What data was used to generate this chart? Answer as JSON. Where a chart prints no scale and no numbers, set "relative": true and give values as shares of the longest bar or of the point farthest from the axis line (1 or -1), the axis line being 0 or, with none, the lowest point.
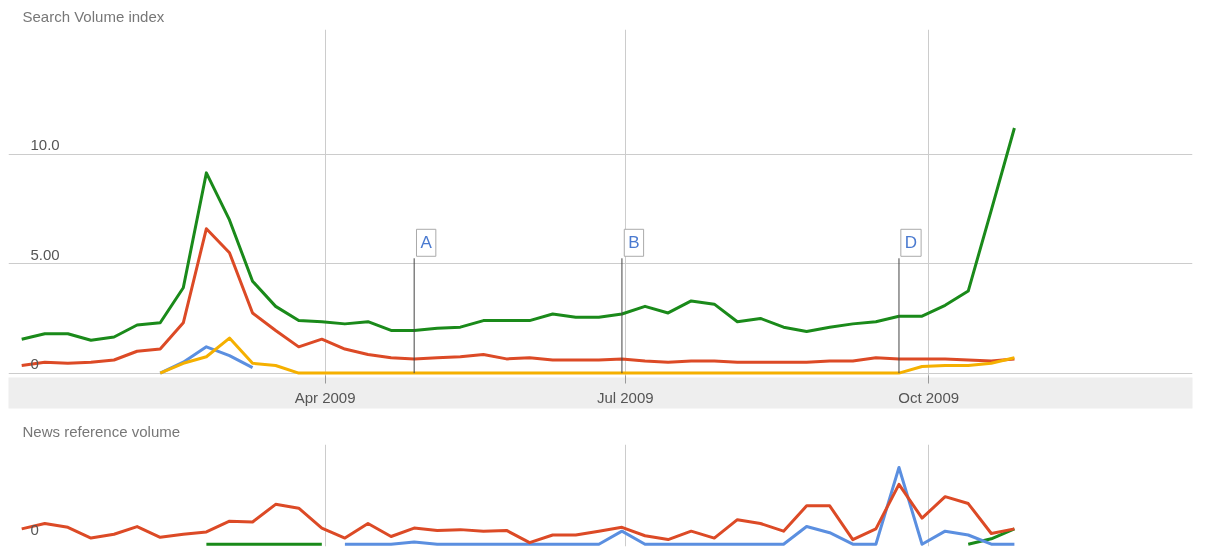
{
  "chart_data": [
    {
      "type": "line",
      "ylabel": "Search Volume index",
      "x": [
        "2008-12-30",
        "2009-01-06",
        "2009-01-13",
        "2009-01-20",
        "2009-01-27",
        "2009-02-03",
        "2009-02-10",
        "2009-02-17",
        "2009-02-24",
        "2009-03-03",
        "2009-03-10",
        "2009-03-17",
        "2009-03-24",
        "2009-03-31",
        "2009-04-07",
        "2009-04-14",
        "2009-04-21",
        "2009-04-28",
        "2009-05-05",
        "2009-05-12",
        "2009-05-19",
        "2009-05-26",
        "2009-06-02",
        "2009-06-09",
        "2009-06-16",
        "2009-06-23",
        "2009-06-30",
        "2009-07-07",
        "2009-07-14",
        "2009-07-21",
        "2009-07-28",
        "2009-08-04",
        "2009-08-11",
        "2009-08-18",
        "2009-08-25",
        "2009-09-01",
        "2009-09-08",
        "2009-09-15",
        "2009-09-22",
        "2009-09-29",
        "2009-10-06",
        "2009-10-13",
        "2009-10-20",
        "2009-10-27"
      ],
      "series": [
        {
          "color": "#1a8a1a",
          "values": [
            1.55,
            1.8,
            1.8,
            1.5,
            1.65,
            2.2,
            2.3,
            3.9,
            9.15,
            7.0,
            4.2,
            3.05,
            2.4,
            2.35,
            2.25,
            2.35,
            1.95,
            1.95,
            2.05,
            2.1,
            2.4,
            2.4,
            2.4,
            2.7,
            2.55,
            2.55,
            2.7,
            3.05,
            2.75,
            3.3,
            3.15,
            2.35,
            2.5,
            2.1,
            1.9,
            2.1,
            2.25,
            2.35,
            2.6,
            2.6,
            3.1,
            3.75,
            7.45,
            11.2
          ]
        },
        {
          "color": "#dc4a26",
          "values": [
            0.35,
            0.5,
            0.45,
            0.5,
            0.6,
            1.0,
            1.1,
            2.3,
            6.6,
            5.5,
            2.75,
            1.95,
            1.2,
            1.55,
            1.1,
            0.85,
            0.7,
            0.65,
            0.7,
            0.75,
            0.85,
            0.65,
            0.7,
            0.6,
            0.6,
            0.6,
            0.65,
            0.55,
            0.5,
            0.55,
            0.55,
            0.5,
            0.5,
            0.5,
            0.5,
            0.55,
            0.55,
            0.7,
            0.65,
            0.65,
            0.65,
            0.6,
            0.55,
            0.65
          ]
        },
        {
          "color": "#5b8fe0",
          "values": [
            null,
            null,
            null,
            null,
            null,
            null,
            0,
            0.5,
            1.2,
            0.8,
            0.25,
            null,
            null,
            null,
            null,
            null,
            null,
            null,
            null,
            null,
            null,
            null,
            null,
            null,
            null,
            null,
            null,
            null,
            null,
            null,
            null,
            null,
            null,
            null,
            null,
            null,
            null,
            null,
            null,
            null,
            null,
            null,
            null,
            null
          ]
        },
        {
          "color": "#f5b000",
          "values": [
            null,
            null,
            null,
            null,
            null,
            null,
            0,
            0.45,
            0.75,
            1.6,
            0.45,
            0.35,
            0,
            0,
            0,
            0,
            0,
            0,
            0,
            0,
            0,
            0,
            0,
            0,
            0,
            0,
            0,
            0,
            0,
            0,
            0,
            0,
            0,
            0,
            0,
            0,
            0,
            0,
            0,
            0.3,
            0.35,
            0.35,
            0.45,
            0.7
          ]
        }
      ],
      "xlim": [
        "2008-12-26",
        "2009-12-20"
      ],
      "xticks": [
        {
          "value": "2009-04-01",
          "label": "Apr 2009"
        },
        {
          "value": "2009-07-01",
          "label": "Jul 2009"
        },
        {
          "value": "2009-10-01",
          "label": "Oct 2009"
        }
      ],
      "ylim": [
        -0.2,
        15.7
      ],
      "yticks": [
        0,
        {
          "value": 5,
          "label": "5.00"
        },
        {
          "value": 10,
          "label": "10.0"
        }
      ],
      "grid": true,
      "annotations": [
        {
          "text": "A",
          "x": "2009-04-28",
          "y": 0
        },
        {
          "text": "B",
          "x": "2009-06-30",
          "y": 0
        },
        {
          "text": "D",
          "x": "2009-09-22",
          "y": 0
        }
      ]
    },
    {
      "type": "line",
      "ylabel": "News reference volume",
      "relative": true,
      "categories": [
        null,
        null,
        null,
        null,
        null,
        null,
        null,
        null,
        null,
        null,
        null,
        null,
        null,
        null,
        null,
        null,
        null,
        null,
        null,
        null,
        null,
        null,
        null,
        null,
        null,
        null,
        null,
        null,
        null,
        null,
        null,
        null,
        null,
        null,
        null,
        null,
        null,
        null,
        null,
        null,
        null,
        null,
        null,
        null
      ],
      "series": [
        {
          "color": "#1a8a1a",
          "values": [
            null,
            null,
            null,
            null,
            null,
            null,
            null,
            null,
            0,
            0,
            0,
            0,
            0,
            0,
            null,
            null,
            null,
            null,
            null,
            null,
            null,
            null,
            null,
            null,
            null,
            null,
            null,
            null,
            null,
            null,
            null,
            null,
            null,
            null,
            null,
            null,
            null,
            null,
            null,
            null,
            null,
            0,
            0.07,
            0.2
          ]
        },
        {
          "color": "#5b8fe0",
          "values": [
            null,
            null,
            null,
            null,
            null,
            null,
            null,
            null,
            null,
            null,
            null,
            null,
            null,
            null,
            0,
            0,
            0,
            0.03,
            0,
            0,
            0,
            0,
            0,
            0,
            0,
            0,
            0.17,
            0,
            0,
            0,
            0,
            0,
            0,
            0,
            0.23,
            0.15,
            0,
            0,
            1.0,
            0,
            0.17,
            0.12,
            0,
            0
          ]
        },
        {
          "color": "#dc4a26",
          "values": [
            0.2,
            0.27,
            0.22,
            0.08,
            0.13,
            0.23,
            0.09,
            0.13,
            0.16,
            0.3,
            0.29,
            0.52,
            0.47,
            0.21,
            0.08,
            0.27,
            0.1,
            0.21,
            0.18,
            0.19,
            0.17,
            0.18,
            0.02,
            0.12,
            0.12,
            0.17,
            0.22,
            0.11,
            0.06,
            0.17,
            0.08,
            0.32,
            0.27,
            0.17,
            0.5,
            0.5,
            0.06,
            0.2,
            0.78,
            0.34,
            0.62,
            0.53,
            0.14,
            0.2
          ]
        }
      ],
      "tick_labels": false,
      "grid": "x",
      "annotations": [
        "0"
      ]
    }
  ]
}
